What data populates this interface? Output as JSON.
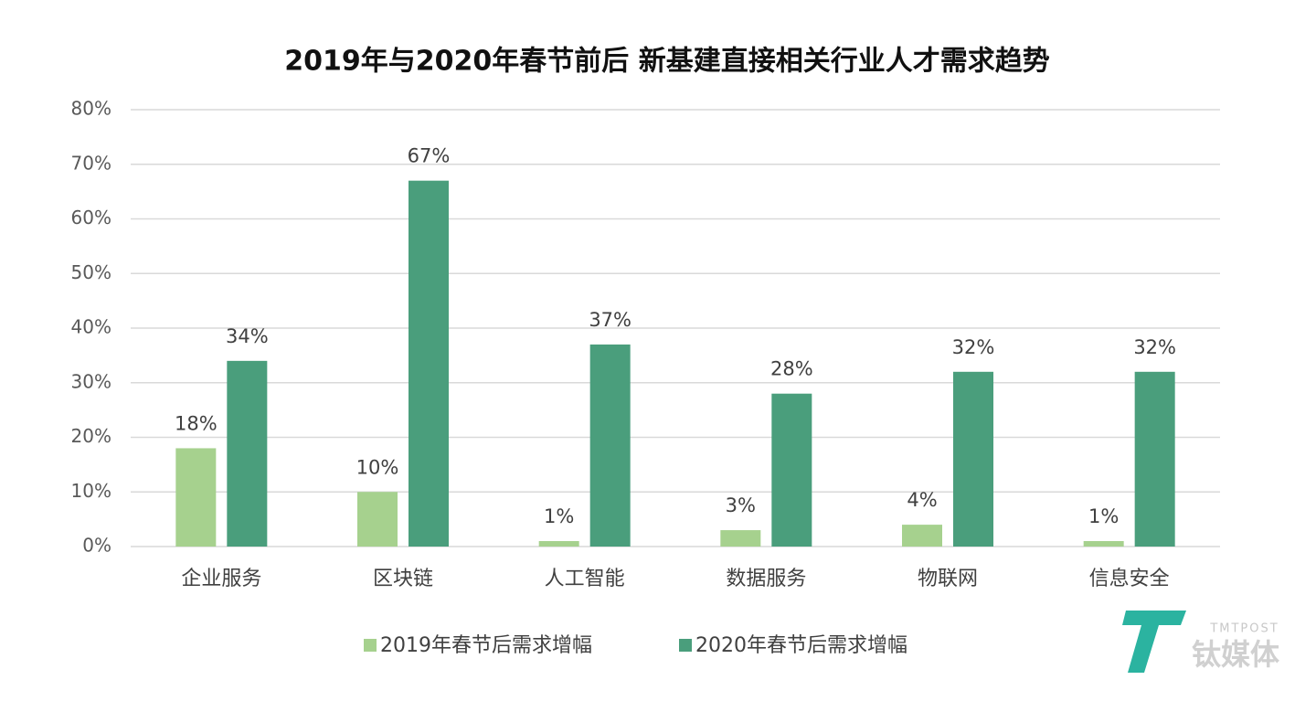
{
  "chart_data": {
    "type": "bar",
    "title": "2019年与2020年春节前后  新基建直接相关行业人才需求趋势",
    "categories": [
      "企业服务",
      "区块链",
      "人工智能",
      "数据服务",
      "物联网",
      "信息安全"
    ],
    "series": [
      {
        "name": "2019年春节后需求增幅",
        "color": "#a6d18e",
        "values": [
          18,
          10,
          1,
          3,
          4,
          1
        ],
        "value_labels": [
          "18%",
          "10%",
          "1%",
          "3%",
          "4%",
          "1%"
        ]
      },
      {
        "name": "2020年春节后需求增幅",
        "color": "#4a9e7c",
        "values": [
          34,
          67,
          37,
          28,
          32,
          32
        ],
        "value_labels": [
          "34%",
          "67%",
          "37%",
          "28%",
          "32%",
          "32%"
        ]
      }
    ],
    "ylim": [
      0,
      80
    ],
    "yticks": [
      {
        "value": 0,
        "label": "0%"
      },
      {
        "value": 10,
        "label": "10%"
      },
      {
        "value": 20,
        "label": "20%"
      },
      {
        "value": 30,
        "label": "30%"
      },
      {
        "value": 40,
        "label": "40%"
      },
      {
        "value": 50,
        "label": "50%"
      },
      {
        "value": 60,
        "label": "60%"
      },
      {
        "value": 70,
        "label": "70%"
      },
      {
        "value": 80,
        "label": "80%"
      }
    ],
    "grid": true,
    "legend": "bottom"
  },
  "watermark": {
    "logo": "TMTPOST",
    "brand": "钛媒体"
  }
}
